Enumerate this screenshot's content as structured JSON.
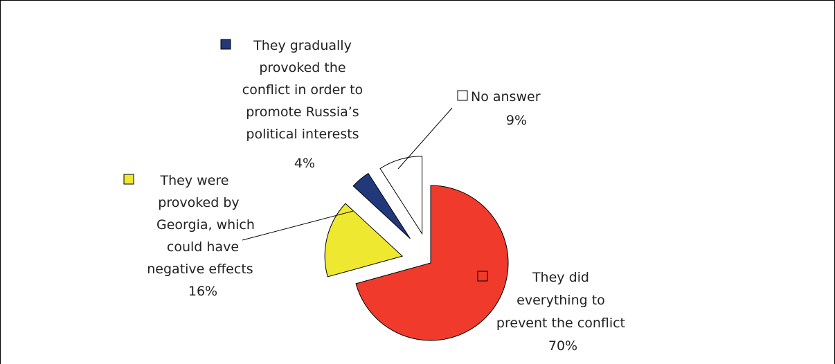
{
  "chart_data": {
    "type": "pie",
    "exploded": true,
    "title": "",
    "series": [
      {
        "categories": [
          "They did everything to prevent the conflict",
          "They were provoked by Georgia, which could have negative effects",
          "They gradually provoked the conflict in order to promote Russia’s political interests",
          "No answer"
        ],
        "values": [
          70,
          16,
          4,
          9
        ],
        "value_labels": [
          "70%",
          "16%",
          "4%",
          "9%"
        ],
        "colors": [
          "#ef3a2c",
          "#efe830",
          "#21397a",
          "#ffffff"
        ]
      }
    ],
    "labels": [
      {
        "lines": [
          "They did",
          "everything to",
          "prevent the conflict"
        ],
        "value": "70%"
      },
      {
        "lines": [
          "They were",
          "provoked by",
          "Georgia, which",
          "could have",
          "negative effects"
        ],
        "value": "16%"
      },
      {
        "lines": [
          "They gradually",
          "provoked the",
          "conflict in order to",
          "promote Russia’s",
          "political interests"
        ],
        "value": "4%"
      },
      {
        "lines": [
          "No answer"
        ],
        "value": "9%"
      }
    ],
    "legend": "inline-with-labels"
  }
}
